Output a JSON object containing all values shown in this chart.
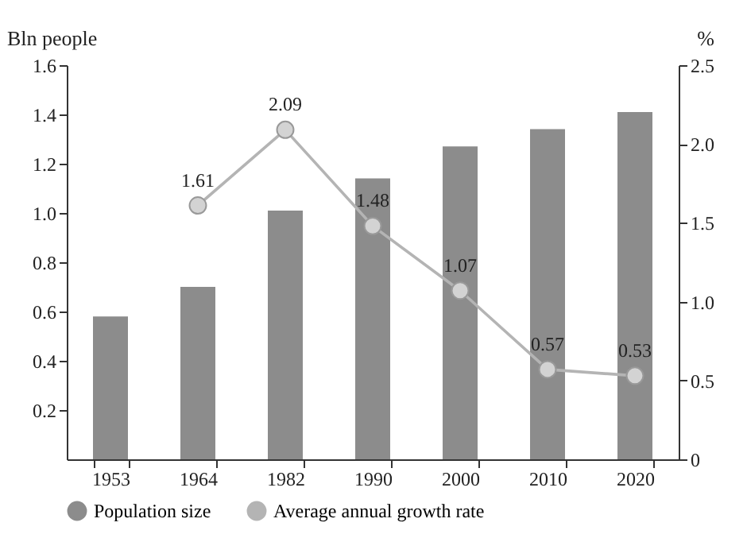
{
  "chart_data": {
    "type": "bar",
    "ylabel": "Bln people",
    "y2label": "%",
    "categories": [
      "1953",
      "1964",
      "1982",
      "1990",
      "2000",
      "2010",
      "2020"
    ],
    "series": [
      {
        "name": "Population size",
        "color": "#8c8c8c",
        "values": [
          0.58,
          0.7,
          1.01,
          1.14,
          1.27,
          1.34,
          1.41
        ]
      },
      {
        "name": "Average annual growth rate",
        "type": "line",
        "axis": "y2",
        "color": "#b4b4b4",
        "marker": "circle",
        "values": [
          null,
          1.61,
          2.09,
          1.48,
          1.07,
          0.57,
          0.53
        ],
        "value_labels": [
          null,
          "1.61",
          "2.09",
          "1.48",
          "1.07",
          "0.57",
          "0.53"
        ]
      }
    ],
    "ylim": [
      0,
      1.6
    ],
    "yticks": [
      0.2,
      0.4,
      0.6,
      0.8,
      {
        "value": 1,
        "label": "1.0"
      },
      1.2,
      1.4,
      1.6
    ],
    "y2lim": [
      0,
      2.5
    ],
    "y2ticks": [
      0,
      0.5,
      {
        "value": 1,
        "label": "1.0"
      },
      1.5,
      {
        "value": 2,
        "label": "2.0"
      },
      2.5
    ],
    "legend": "bottom",
    "grid": false
  }
}
